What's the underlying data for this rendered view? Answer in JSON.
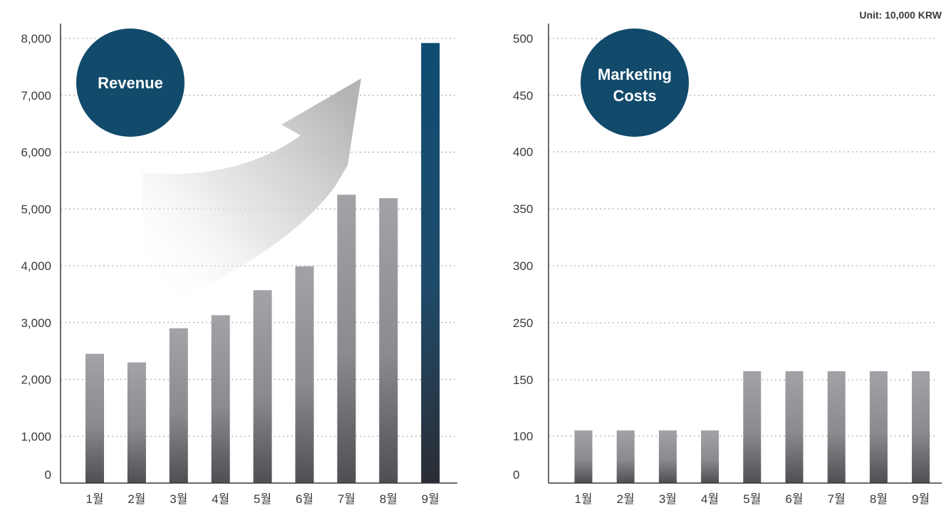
{
  "unit_label": "Unit: 10,000 KRW",
  "colors": {
    "bar_top": "#a2a3a7",
    "bar_bottom": "#4e4f53",
    "highlight_top": "#0f4c72",
    "highlight_bottom": "#2b2d35",
    "badge": "#114a6b"
  },
  "chart_data": [
    {
      "type": "bar",
      "badge": "Revenue",
      "categories": [
        "1월",
        "2월",
        "3월",
        "4월",
        "5월",
        "6월",
        "7월",
        "8월",
        "9월"
      ],
      "values": [
        2450,
        2300,
        2900,
        3130,
        3570,
        3990,
        5250,
        5190,
        7920
      ],
      "highlight_index": 8,
      "yticks": [
        "0",
        "1,000",
        "2,000",
        "3,000",
        "4,000",
        "5,000",
        "6,000",
        "7,000",
        "8,000"
      ],
      "ylim": [
        0,
        8000
      ],
      "grid": true,
      "arrow": "up-right"
    },
    {
      "type": "bar",
      "badge": "Marketing Costs",
      "categories": [
        "1월",
        "2월",
        "3월",
        "4월",
        "5월",
        "6월",
        "7월",
        "8월",
        "9월"
      ],
      "values": [
        105,
        105,
        105,
        105,
        165,
        165,
        165,
        165,
        165
      ],
      "yticks": [
        "0",
        "100",
        "150",
        "250",
        "300",
        "350",
        "400",
        "450",
        "500"
      ],
      "grid": true
    }
  ]
}
